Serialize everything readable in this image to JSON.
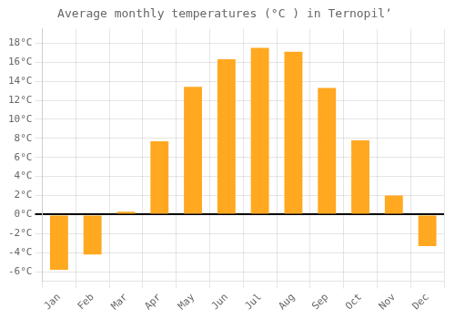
{
  "chart_data": {
    "type": "bar",
    "title": "Average monthly temperatures (°C ) in Ternopilʼ",
    "categories": [
      "Jan",
      "Feb",
      "Mar",
      "Apr",
      "May",
      "Jun",
      "Jul",
      "Aug",
      "Sep",
      "Oct",
      "Nov",
      "Dec"
    ],
    "values": [
      -5.8,
      -4.2,
      0.3,
      7.7,
      13.4,
      16.3,
      17.5,
      17.1,
      13.3,
      7.8,
      2.0,
      -3.3
    ],
    "color": "#FFA820",
    "ylim": [
      -7,
      19.5
    ],
    "yticks": [
      {
        "value": -6,
        "label": "-6°C"
      },
      {
        "value": -4,
        "label": "-4°C"
      },
      {
        "value": -2,
        "label": "-2°C"
      },
      {
        "value": 0,
        "label": "0°C"
      },
      {
        "value": 2,
        "label": "2°C"
      },
      {
        "value": 4,
        "label": "4°C"
      },
      {
        "value": 6,
        "label": "6°C"
      },
      {
        "value": 8,
        "label": "8°C"
      },
      {
        "value": 10,
        "label": "10°C"
      },
      {
        "value": 12,
        "label": "12°C"
      },
      {
        "value": 14,
        "label": "14°C"
      },
      {
        "value": 16,
        "label": "16°C"
      },
      {
        "value": 18,
        "label": "18°C"
      }
    ],
    "grid": true
  }
}
